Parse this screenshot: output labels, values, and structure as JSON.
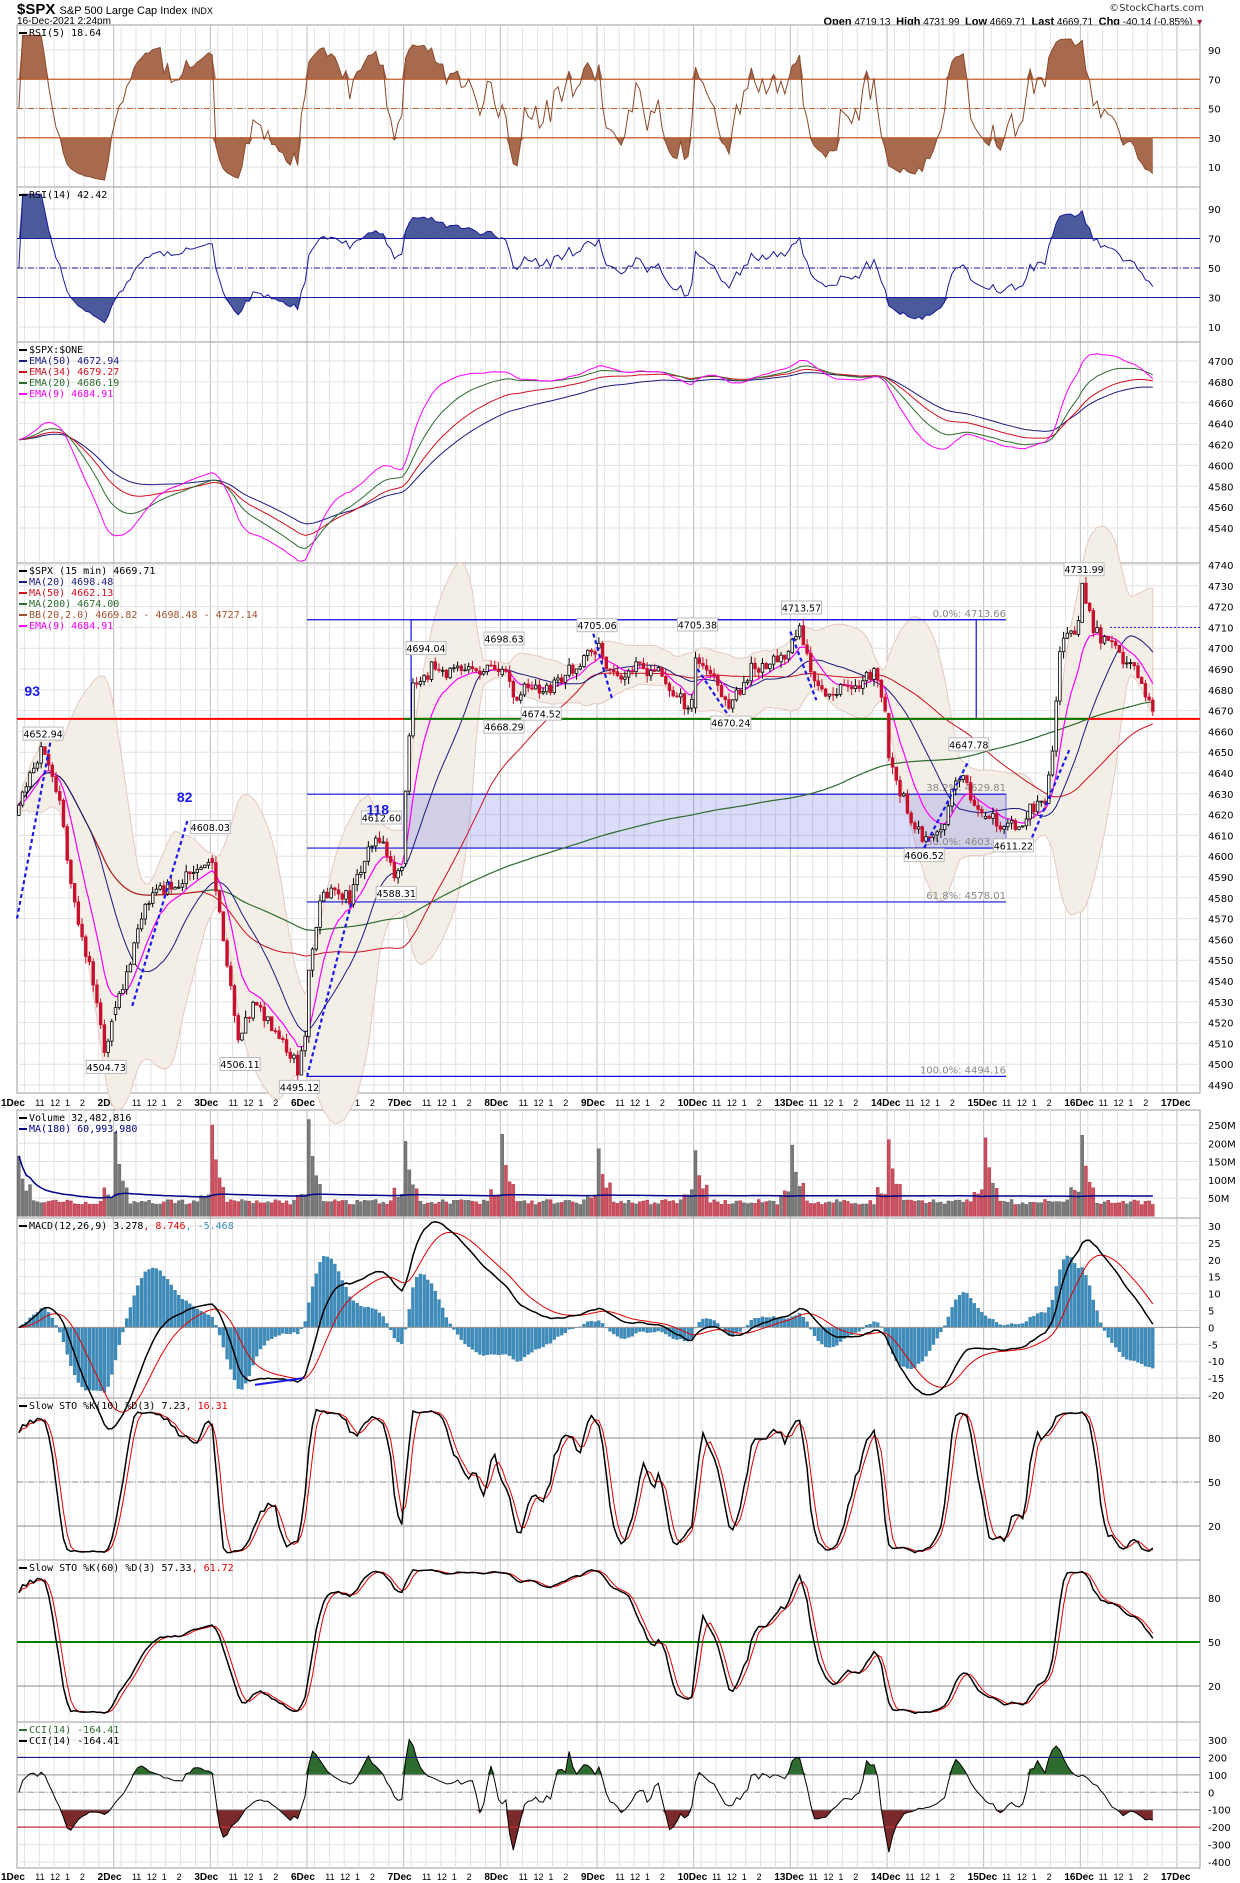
{
  "header": {
    "symbol": "$SPX",
    "name": "S&P 500 Large Cap Index",
    "exchange": "INDX",
    "datetime": "16-Dec-2021 2:24pm",
    "watermark": "©StockCharts.com",
    "open_label": "Open",
    "open": "4719.13",
    "high_label": "High",
    "high": "4731.99",
    "low_label": "Low",
    "low": "4669.71",
    "last_label": "Last",
    "last": "4669.71",
    "chg_label": "Chg",
    "chg": "-40.14 (-0.85%)"
  },
  "chart_data": {
    "type": "candlestick",
    "interval": "15 min",
    "days": [
      "1Dec",
      "2Dec",
      "3Dec",
      "6Dec",
      "7Dec",
      "8Dec",
      "9Dec",
      "10Dec",
      "13Dec",
      "14Dec",
      "15Dec",
      "16Dec",
      "17Dec"
    ],
    "hour_ticks": [
      "11",
      "12",
      "1",
      "2"
    ],
    "colors": {
      "up": "#ffffff",
      "down": "#c8102e",
      "ma20": "#1a1a80",
      "ma50": "#d01020",
      "ma200": "#2e6b2e",
      "ema9": "#ff00ff",
      "bb": "#efeae0",
      "macd_hist": "#3b8dbd"
    },
    "price_path": [
      [
        "1Dec",
        "09:30",
        4618
      ],
      [
        "1Dec",
        "10:30",
        4640
      ],
      [
        "1Dec",
        "11:15",
        4652
      ],
      [
        "1Dec",
        "12:30",
        4625
      ],
      [
        "1Dec",
        "13:30",
        4575
      ],
      [
        "1Dec",
        "14:30",
        4548
      ],
      [
        "1Dec",
        "15:30",
        4506
      ],
      [
        "1Dec",
        "16:00",
        4522
      ],
      [
        "2Dec",
        "09:45",
        4530
      ],
      [
        "2Dec",
        "10:45",
        4548
      ],
      [
        "2Dec",
        "11:45",
        4578
      ],
      [
        "2Dec",
        "12:45",
        4584
      ],
      [
        "2Dec",
        "14:00",
        4588
      ],
      [
        "2Dec",
        "15:00",
        4594
      ],
      [
        "2Dec",
        "16:00",
        4598
      ],
      [
        "3Dec",
        "09:45",
        4596
      ],
      [
        "3Dec",
        "10:30",
        4560
      ],
      [
        "3Dec",
        "11:30",
        4510
      ],
      [
        "3Dec",
        "12:30",
        4528
      ],
      [
        "3Dec",
        "13:30",
        4522
      ],
      [
        "3Dec",
        "14:30",
        4512
      ],
      [
        "3Dec",
        "15:30",
        4498
      ],
      [
        "3Dec",
        "16:00",
        4515
      ],
      [
        "6Dec",
        "09:45",
        4545
      ],
      [
        "6Dec",
        "10:30",
        4580
      ],
      [
        "6Dec",
        "11:30",
        4585
      ],
      [
        "6Dec",
        "12:30",
        4580
      ],
      [
        "6Dec",
        "13:30",
        4598
      ],
      [
        "6Dec",
        "14:30",
        4610
      ],
      [
        "6Dec",
        "15:30",
        4592
      ],
      [
        "6Dec",
        "16:00",
        4598
      ],
      [
        "7Dec",
        "09:45",
        4630
      ],
      [
        "7Dec",
        "10:15",
        4680
      ],
      [
        "7Dec",
        "11:30",
        4690
      ],
      [
        "7Dec",
        "13:00",
        4688
      ],
      [
        "7Dec",
        "14:30",
        4690
      ],
      [
        "7Dec",
        "16:00",
        4688
      ],
      [
        "8Dec",
        "09:45",
        4692
      ],
      [
        "8Dec",
        "10:30",
        4675
      ],
      [
        "8Dec",
        "11:30",
        4682
      ],
      [
        "8Dec",
        "12:30",
        4678
      ],
      [
        "8Dec",
        "14:00",
        4688
      ],
      [
        "8Dec",
        "15:00",
        4694
      ],
      [
        "8Dec",
        "16:00",
        4700
      ],
      [
        "9Dec",
        "09:45",
        4702
      ],
      [
        "9Dec",
        "10:30",
        4686
      ],
      [
        "9Dec",
        "12:00",
        4690
      ],
      [
        "9Dec",
        "13:30",
        4690
      ],
      [
        "9Dec",
        "15:00",
        4676
      ],
      [
        "9Dec",
        "16:00",
        4672
      ],
      [
        "10Dec",
        "09:45",
        4695
      ],
      [
        "10Dec",
        "11:00",
        4688
      ],
      [
        "10Dec",
        "12:00",
        4672
      ],
      [
        "10Dec",
        "13:30",
        4690
      ],
      [
        "10Dec",
        "15:00",
        4694
      ],
      [
        "10Dec",
        "16:00",
        4698
      ],
      [
        "13Dec",
        "09:45",
        4702
      ],
      [
        "13Dec",
        "10:15",
        4710
      ],
      [
        "13Dec",
        "11:00",
        4690
      ],
      [
        "13Dec",
        "12:00",
        4678
      ],
      [
        "13Dec",
        "13:30",
        4680
      ],
      [
        "13Dec",
        "14:30",
        4684
      ],
      [
        "13Dec",
        "15:30",
        4688
      ],
      [
        "13Dec",
        "16:00",
        4668
      ],
      [
        "14Dec",
        "09:45",
        4650
      ],
      [
        "14Dec",
        "10:30",
        4632
      ],
      [
        "14Dec",
        "11:30",
        4612
      ],
      [
        "14Dec",
        "12:30",
        4608
      ],
      [
        "14Dec",
        "13:30",
        4618
      ],
      [
        "14Dec",
        "14:30",
        4640
      ],
      [
        "14Dec",
        "15:30",
        4624
      ],
      [
        "14Dec",
        "16:00",
        4620
      ],
      [
        "15Dec",
        "09:45",
        4622
      ],
      [
        "15Dec",
        "10:45",
        4615
      ],
      [
        "15Dec",
        "11:45",
        4614
      ],
      [
        "15Dec",
        "12:45",
        4622
      ],
      [
        "15Dec",
        "13:45",
        4628
      ],
      [
        "15Dec",
        "14:15",
        4650
      ],
      [
        "15Dec",
        "14:45",
        4700
      ],
      [
        "15Dec",
        "16:00",
        4712
      ],
      [
        "16Dec",
        "09:45",
        4728
      ],
      [
        "16Dec",
        "10:30",
        4708
      ],
      [
        "16Dec",
        "11:30",
        4702
      ],
      [
        "16Dec",
        "12:30",
        4694
      ],
      [
        "16Dec",
        "13:30",
        4688
      ],
      [
        "16Dec",
        "14:30",
        4669.71
      ]
    ],
    "price_labels": [
      {
        "day": "1Dec",
        "time": "11:15",
        "price": 4652.94,
        "text": "4652.94",
        "pos": "above"
      },
      {
        "day": "1Dec",
        "time": "15:30",
        "price": 4504.73,
        "text": "4504.73",
        "pos": "below"
      },
      {
        "day": "3Dec",
        "time": "09:30",
        "price": 4608.03,
        "text": "4608.03",
        "pos": "above"
      },
      {
        "day": "3Dec",
        "time": "11:30",
        "price": 4506.11,
        "text": "4506.11",
        "pos": "below"
      },
      {
        "day": "3Dec",
        "time": "15:30",
        "price": 4495.12,
        "text": "4495.12",
        "pos": "below"
      },
      {
        "day": "6Dec",
        "time": "14:30",
        "price": 4612.6,
        "text": "4612.60",
        "pos": "above"
      },
      {
        "day": "6Dec",
        "time": "15:30",
        "price": 4588.31,
        "text": "4588.31",
        "pos": "below"
      },
      {
        "day": "7Dec",
        "time": "11:00",
        "price": 4694.04,
        "text": "4694.04",
        "pos": "above"
      },
      {
        "day": "8Dec",
        "time": "09:45",
        "price": 4698.63,
        "text": "4698.63",
        "pos": "above"
      },
      {
        "day": "8Dec",
        "time": "09:45",
        "price": 4668.29,
        "text": "4668.29",
        "pos": "below"
      },
      {
        "day": "8Dec",
        "time": "12:15",
        "price": 4674.52,
        "text": "4674.52",
        "pos": "below"
      },
      {
        "day": "9Dec",
        "time": "09:30",
        "price": 4705.06,
        "text": "4705.06",
        "pos": "above"
      },
      {
        "day": "10Dec",
        "time": "09:45",
        "price": 4705.38,
        "text": "4705.38",
        "pos": "above"
      },
      {
        "day": "10Dec",
        "time": "12:00",
        "price": 4670.24,
        "text": "4670.24",
        "pos": "below"
      },
      {
        "day": "13Dec",
        "time": "10:15",
        "price": 4713.57,
        "text": "4713.57",
        "pos": "above"
      },
      {
        "day": "14Dec",
        "time": "15:00",
        "price": 4647.78,
        "text": "4647.78",
        "pos": "above"
      },
      {
        "day": "14Dec",
        "time": "12:00",
        "price": 4606.52,
        "text": "4606.52",
        "pos": "below"
      },
      {
        "day": "15Dec",
        "time": "11:30",
        "price": 4611.22,
        "text": "4611.22",
        "pos": "below"
      },
      {
        "day": "16Dec",
        "time": "09:45",
        "price": 4731.99,
        "text": "4731.99",
        "pos": "above"
      }
    ],
    "wave_labels": [
      {
        "day": "1Dec",
        "time": "10:00",
        "price": 4677,
        "text": "93"
      },
      {
        "day": "2Dec",
        "time": "13:45",
        "price": 4626,
        "text": "82"
      },
      {
        "day": "6Dec",
        "time": "13:30",
        "price": 4620,
        "text": "118"
      }
    ],
    "trendlines": [
      [
        [
          "1Dec",
          "09:30",
          4570
        ],
        [
          "1Dec",
          "11:45",
          4655
        ]
      ],
      [
        [
          "2Dec",
          "10:45",
          4528
        ],
        [
          "2Dec",
          "14:30",
          4618
        ]
      ],
      [
        [
          "6Dec",
          "09:30",
          4494
        ],
        [
          "6Dec",
          "12:30",
          4578
        ]
      ],
      [
        [
          "9Dec",
          "09:15",
          4707
        ],
        [
          "9Dec",
          "10:30",
          4676
        ]
      ],
      [
        [
          "10Dec",
          "09:45",
          4690
        ],
        [
          "10Dec",
          "12:00",
          4666
        ]
      ],
      [
        [
          "13Dec",
          "09:30",
          4708
        ],
        [
          "13Dec",
          "11:15",
          4675
        ]
      ],
      [
        [
          "14Dec",
          "12:00",
          4604
        ],
        [
          "14Dec",
          "15:00",
          4646
        ]
      ],
      [
        [
          "15Dec",
          "12:45",
          4609
        ],
        [
          "15Dec",
          "15:15",
          4651
        ]
      ]
    ],
    "support_level": 4666,
    "range_box": {
      "top": 4713.66,
      "bottom": 4666,
      "start": [
        "7Dec",
        "10:00"
      ],
      "end": [
        "14Dec",
        "15:30"
      ]
    },
    "retrace_zone": {
      "top": 4629.81,
      "bottom": 4603.91,
      "start": [
        "7Dec",
        "09:30"
      ],
      "end": [
        "15Dec",
        "11:00"
      ]
    },
    "resistance_dotted": {
      "value": 4710,
      "start": [
        "16Dec",
        "11:30"
      ]
    },
    "fib": [
      {
        "text": "0.0%: 4713.66",
        "value": 4713.66
      },
      {
        "text": "38.2%: 4629.81",
        "value": 4629.81
      },
      {
        "text": "50.0%: 4603.91",
        "value": 4603.91
      },
      {
        "text": "61.8%: 4578.01",
        "value": 4578.01
      },
      {
        "text": "100.0%: 4494.16",
        "value": 4494.16
      }
    ],
    "fib_span": {
      "start": [
        "6Dec",
        "09:30"
      ],
      "end": [
        "15Dec",
        "11:00"
      ]
    },
    "volume_open_peaks_m": [
      165,
      230,
      250,
      265,
      205,
      225,
      185,
      180,
      195,
      210,
      215,
      222
    ],
    "panels": [
      {
        "id": "rsi5",
        "legend": [
          {
            "text": "RSI(5) 18.64",
            "color": "#000000"
          }
        ],
        "ticks": [
          "90",
          "70",
          "50",
          "30",
          "10"
        ]
      },
      {
        "id": "rsi14",
        "legend": [
          {
            "text": "RSI(14) 42.42",
            "color": "#000000"
          }
        ],
        "ticks": [
          "90",
          "70",
          "50",
          "30",
          "10"
        ]
      },
      {
        "id": "ema",
        "legend": [
          {
            "text": "$SPX:$ONE",
            "color": "#000000"
          },
          {
            "text": "EMA(50) 4672.94",
            "color": "#1a1a80"
          },
          {
            "text": "EMA(34) 4679.27",
            "color": "#d01020"
          },
          {
            "text": "EMA(20) 4686.19",
            "color": "#2e6b2e"
          },
          {
            "text": "EMA(9) 4684.91",
            "color": "#ff00ff"
          }
        ],
        "ticks": [
          "4700",
          "4680",
          "4660",
          "4640",
          "4620",
          "4600",
          "4580",
          "4560",
          "4540"
        ]
      },
      {
        "id": "price",
        "legend": [
          {
            "text": "$SPX (15 min) 4669.71",
            "color": "#000000"
          },
          {
            "text": "MA(20) 4698.48",
            "color": "#1a1a80"
          },
          {
            "text": "MA(50) 4662.13",
            "color": "#d01020"
          },
          {
            "text": "MA(200) 4674.00",
            "color": "#2e6b2e"
          },
          {
            "text": "BB(20,2.0) 4669.82 - 4698.48 - 4727.14",
            "color": "#a0522d"
          },
          {
            "text": "EMA(9) 4684.91",
            "color": "#ff00ff"
          }
        ],
        "ticks": [
          "4740",
          "4730",
          "4720",
          "4710",
          "4700",
          "4690",
          "4680",
          "4670",
          "4660",
          "4650",
          "4640",
          "4630",
          "4620",
          "4610",
          "4600",
          "4590",
          "4580",
          "4570",
          "4560",
          "4550",
          "4540",
          "4530",
          "4520",
          "4510",
          "4500",
          "4490"
        ]
      },
      {
        "id": "volume",
        "legend": [
          {
            "text": "Volume 32,482,816",
            "color": "#000000"
          },
          {
            "text": "MA(180) 60,993,980",
            "color": "#00008b"
          }
        ],
        "ticks": [
          "250M",
          "200M",
          "150M",
          "100M",
          "50M"
        ]
      },
      {
        "id": "macd",
        "legend": [
          {
            "text": "MACD(12,26,9) 3.278",
            "color": "#000000",
            "parts": [
              {
                "text": ", 8.746",
                "color": "#e00000"
              },
              {
                "text": ", -5.468",
                "color": "#3b8dbd"
              }
            ]
          }
        ],
        "ticks": [
          "30",
          "25",
          "20",
          "15",
          "10",
          "5",
          "0",
          "-5",
          "-10",
          "-15",
          "-20"
        ]
      },
      {
        "id": "sto10",
        "legend": [
          {
            "text": "Slow STO %K(10) %D(3) 7.23",
            "color": "#000000",
            "parts": [
              {
                "text": ", 16.31",
                "color": "#e00000"
              }
            ]
          }
        ],
        "ticks": [
          "80",
          "50",
          "20"
        ]
      },
      {
        "id": "sto60",
        "legend": [
          {
            "text": "Slow STO %K(60) %D(3) 57.33",
            "color": "#000000",
            "parts": [
              {
                "text": ", 61.72",
                "color": "#e00000"
              }
            ]
          }
        ],
        "ticks": [
          "80",
          "50",
          "20"
        ]
      },
      {
        "id": "cci",
        "legend": [
          {
            "text": "CCI(14) -164.41",
            "color": "#2e6b2e"
          },
          {
            "text": "CCI(14) -164.41",
            "color": "#000000"
          }
        ],
        "ticks": [
          "300",
          "200",
          "100",
          "0",
          "-100",
          "-200",
          "-300",
          "-400"
        ]
      }
    ]
  }
}
